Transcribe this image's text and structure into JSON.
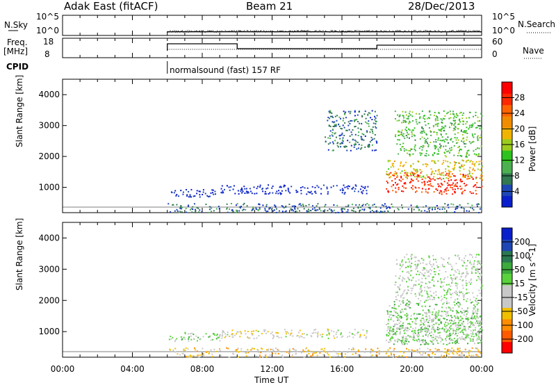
{
  "header": {
    "station": "Adak East (fitACF)",
    "beam": "Beam 21",
    "date": "28/Dec/2013"
  },
  "top_panels": {
    "nsky_label": "N.Sky",
    "nsky_ticks": [
      "10^5",
      "10^0"
    ],
    "nsearch_label": "N.Search",
    "nsearch_ticks": [
      "10^5",
      "10^0"
    ],
    "freq_label": "Freq.",
    "freq_unit": "[MHz]",
    "freq_ticks": [
      "18",
      "8"
    ],
    "nave_label": "Nave",
    "nave_ticks": [
      "60",
      "0"
    ],
    "cpid_label": "CPID",
    "cpid_text": "normalsound (fast) 157 RF"
  },
  "x_axis": {
    "label": "Time UT",
    "ticks": [
      "00:00",
      "04:00",
      "08:00",
      "12:00",
      "16:00",
      "20:00",
      "00:00"
    ]
  },
  "colors": {
    "power": [
      "#0a1ecc",
      "#1e46b4",
      "#327850",
      "#4caf50",
      "#2ec21e",
      "#9ccc1e",
      "#f0b400",
      "#f08c00",
      "#ff6400",
      "#ff2800",
      "#ff0000"
    ],
    "velocity": [
      "#ff0000",
      "#ff5a00",
      "#ff8c00",
      "#f0c000",
      "#c8c8c8",
      "#c8c8c8",
      "#5ad23c",
      "#3caa3c",
      "#2a7850",
      "#1e46b4",
      "#0a1ecc"
    ]
  },
  "chart_data": [
    {
      "type": "line",
      "title": "N.Sky / N.Search",
      "x_range_hours": [
        0,
        24
      ],
      "y_scale": "log",
      "y_ticks": [
        "10^0",
        "10^5"
      ],
      "series": [
        {
          "name": "N.Sky",
          "x": [
            6,
            6,
            24
          ],
          "y": [
            1,
            2,
            2
          ]
        }
      ]
    },
    {
      "type": "line",
      "title": "Freq.",
      "y_range_mhz": [
        8,
        18
      ],
      "y2_range_nave": [
        0,
        60
      ],
      "series": [
        {
          "name": "Freq.",
          "x": [
            6,
            6,
            10,
            10,
            18,
            18,
            24
          ],
          "y": [
            11,
            16,
            16,
            12.5,
            12.5,
            15,
            15
          ]
        },
        {
          "name": "Nave",
          "x": [
            6,
            24
          ],
          "y": [
            12,
            12
          ]
        }
      ]
    },
    {
      "type": "heatmap",
      "ylabel": "Slant Range [km]",
      "y_ticks": [
        1000,
        2000,
        3000,
        4000
      ],
      "ylim": [
        180,
        4500
      ],
      "xlim_hours": [
        0,
        24
      ],
      "colorbar": {
        "label": "Power [dB]",
        "ticks": [
          4,
          8,
          12,
          16,
          20,
          24,
          28
        ],
        "range": [
          0,
          32
        ]
      },
      "regions": [
        {
          "t": [
            6,
            9
          ],
          "r": [
            700,
            950
          ],
          "level": 2
        },
        {
          "t": [
            9,
            17.5
          ],
          "r": [
            800,
            1100
          ],
          "level": 1
        },
        {
          "t": [
            6,
            24
          ],
          "r": [
            200,
            500
          ],
          "level": 6
        },
        {
          "t": [
            18.5,
            24
          ],
          "r": [
            800,
            1500
          ],
          "level": 28
        },
        {
          "t": [
            18.5,
            24
          ],
          "r": [
            1300,
            1900
          ],
          "level": 18
        },
        {
          "t": [
            19,
            24
          ],
          "r": [
            2000,
            3500
          ],
          "level": 12
        },
        {
          "t": [
            15,
            18
          ],
          "r": [
            2200,
            3500
          ],
          "level": 6
        }
      ]
    },
    {
      "type": "heatmap",
      "ylabel": "Slant Range [km]",
      "y_ticks": [
        1000,
        2000,
        3000,
        4000
      ],
      "ylim": [
        180,
        4500
      ],
      "xlim_hours": [
        0,
        24
      ],
      "colorbar": {
        "label": "Velocity [m s^-1]",
        "ticks": [
          200,
          100,
          50,
          15,
          -15,
          -50,
          -100,
          -200
        ],
        "range": [
          -250,
          250
        ]
      },
      "regions": [
        {
          "t": [
            6,
            9
          ],
          "r": [
            700,
            1000
          ],
          "level": 40
        },
        {
          "t": [
            9,
            17.5
          ],
          "r": [
            800,
            1100
          ],
          "level": -30
        },
        {
          "t": [
            6,
            24
          ],
          "r": [
            200,
            500
          ],
          "level": -80
        },
        {
          "t": [
            18.5,
            24
          ],
          "r": [
            700,
            1700
          ],
          "level": 0
        },
        {
          "t": [
            18.5,
            24
          ],
          "r": [
            600,
            2000
          ],
          "level": 40
        },
        {
          "t": [
            19,
            24
          ],
          "r": [
            2000,
            3500
          ],
          "level": 0
        }
      ]
    }
  ]
}
